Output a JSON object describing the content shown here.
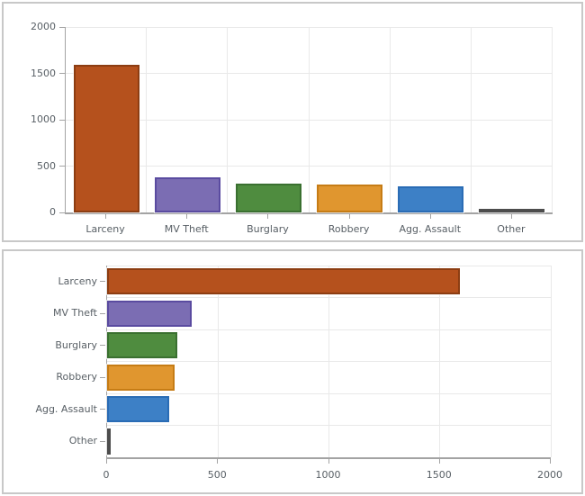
{
  "style": {
    "background": "#ffffff",
    "panel_border_color": "#c8c8c8",
    "axis_color": "#a3a3a3",
    "grid_color": "#e9e9e9",
    "tick_color": "#a3a3a3",
    "label_color": "#596066"
  },
  "chart_data": [
    {
      "type": "bar",
      "orientation": "vertical",
      "title": "",
      "xlabel": "",
      "ylabel": "",
      "categories": [
        "Larceny",
        "MV Theft",
        "Burglary",
        "Robbery",
        "Agg. Assault",
        "Other"
      ],
      "values": [
        1590,
        380,
        315,
        305,
        280,
        18
      ],
      "ylim": [
        0,
        2000
      ],
      "yticks": [
        0,
        500,
        1000,
        1500,
        2000
      ],
      "grid": true,
      "legend": false,
      "bar_fill_colors": [
        "#b5511d",
        "#7b6db3",
        "#4f8c3f",
        "#e0962f",
        "#3d80c6",
        "#767676"
      ],
      "bar_border_colors": [
        "#8c3d12",
        "#5a4ba0",
        "#3a7030",
        "#c67c15",
        "#2a6cb5",
        "#4d4d4d"
      ]
    },
    {
      "type": "bar",
      "orientation": "horizontal",
      "title": "",
      "xlabel": "",
      "ylabel": "",
      "categories": [
        "Larceny",
        "MV Theft",
        "Burglary",
        "Robbery",
        "Agg. Assault",
        "Other"
      ],
      "values": [
        1590,
        380,
        315,
        305,
        280,
        18
      ],
      "xlim": [
        0,
        2000
      ],
      "xticks": [
        0,
        500,
        1000,
        1500,
        2000
      ],
      "grid": true,
      "legend": false,
      "bar_fill_colors": [
        "#b5511d",
        "#7b6db3",
        "#4f8c3f",
        "#e0962f",
        "#3d80c6",
        "#767676"
      ],
      "bar_border_colors": [
        "#8c3d12",
        "#5a4ba0",
        "#3a7030",
        "#c67c15",
        "#2a6cb5",
        "#4d4d4d"
      ]
    }
  ]
}
